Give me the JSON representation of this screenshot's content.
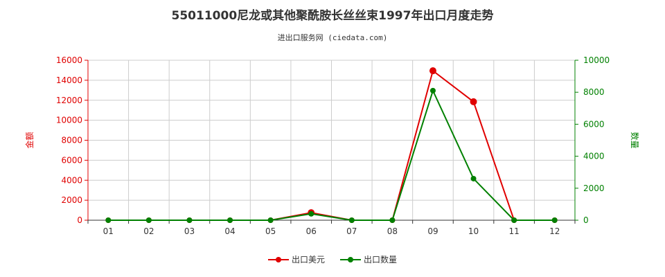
{
  "header": {
    "title": "55011000尼龙或其他聚酰胺长丝丝束1997年出口月度走势",
    "subtitle": "进出口服务网 (ciedata.com)"
  },
  "colors": {
    "left_axis": "#e00000",
    "right_axis": "#008000",
    "grid": "#cccccc"
  },
  "chart_data": {
    "type": "line",
    "title": "55011000尼龙或其他聚酰胺长丝丝束1997年出口月度走势",
    "subtitle": "进出口服务网 (ciedata.com)",
    "categories": [
      "01",
      "02",
      "03",
      "04",
      "05",
      "06",
      "07",
      "08",
      "09",
      "10",
      "11",
      "12"
    ],
    "y_left": {
      "label": "金额",
      "ylim": [
        0,
        16000
      ],
      "ticks": [
        0,
        2000,
        4000,
        6000,
        8000,
        10000,
        12000,
        14000,
        16000
      ]
    },
    "y_right": {
      "label": "数量",
      "ylim": [
        0,
        10000
      ],
      "ticks": [
        0,
        2000,
        4000,
        6000,
        8000,
        10000
      ]
    },
    "series": [
      {
        "name": "出口美元",
        "axis": "left",
        "color": "#e00000",
        "values": [
          0,
          0,
          0,
          0,
          0,
          750,
          0,
          0,
          14950,
          11850,
          0,
          0
        ]
      },
      {
        "name": "出口数量",
        "axis": "right",
        "color": "#008000",
        "values": [
          0,
          0,
          0,
          0,
          0,
          400,
          0,
          0,
          8100,
          2600,
          0,
          0
        ]
      }
    ],
    "grid": true,
    "legend_position": "bottom-center"
  }
}
